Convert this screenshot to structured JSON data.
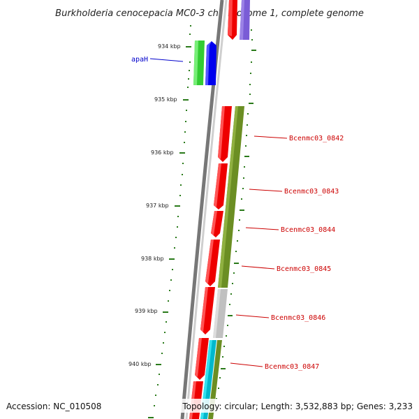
{
  "title": "Burkholderia cenocepacia MC0-3 chromosome 1, complete genome",
  "footer": {
    "accession": "Accession: NC_010508",
    "topology": "Topology: circular; Length: 3,532,883 bp; Genes: 3,233"
  },
  "colors": {
    "backbone": "#888888",
    "tick": "#2a7a1a",
    "label_blue": "#0000cc",
    "label_red": "#cc0000"
  },
  "scale": {
    "unit": "kbp",
    "ticks": [
      "934 kbp",
      "935 kbp",
      "936 kbp",
      "937 kbp",
      "938 kbp",
      "939 kbp",
      "940 kbp"
    ]
  },
  "genes": [
    {
      "name": "apaH",
      "color": "blue"
    },
    {
      "name": "Bcenmc03_0842",
      "color": "red"
    },
    {
      "name": "Bcenmc03_0843",
      "color": "red"
    },
    {
      "name": "Bcenmc03_0844",
      "color": "red"
    },
    {
      "name": "Bcenmc03_0845",
      "color": "red"
    },
    {
      "name": "Bcenmc03_0846",
      "color": "red"
    },
    {
      "name": "Bcenmc03_0847",
      "color": "red"
    }
  ]
}
